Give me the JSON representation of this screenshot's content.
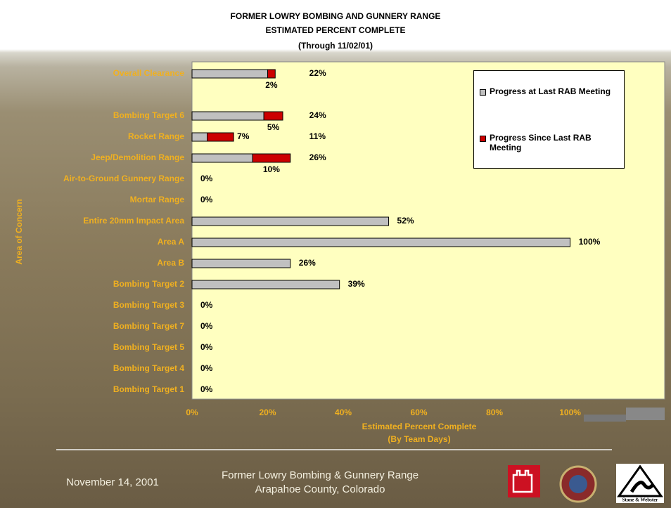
{
  "chart_data": {
    "type": "stacked-bar-horizontal",
    "title": "FORMER LOWRY BOMBING AND GUNNERY RANGE",
    "subtitle": "ESTIMATED PERCENT COMPLETE",
    "note": "(Through 11/02/01)",
    "x_label": "Estimated Percent Complete",
    "x_sublabel": "(By Team Days)",
    "y_label": "Area of Concern",
    "categories": [
      "Overall Clearance",
      null,
      "Bombing Target 6",
      "Rocket Range",
      "Jeep/Demolition Range",
      "Air-to-Ground Gunnery Range",
      "Mortar Range",
      "Entire 20mm Impact Area",
      "Area A",
      "Area B",
      "Bombing Target 2",
      "Bombing Target 3",
      "Bombing Target 7",
      "Bombing Target 5",
      "Bombing Target 4",
      "Bombing Target 1"
    ],
    "series": [
      {
        "name": "Progress at Last RAB Meeting",
        "color": "#c0c0c0",
        "values": [
          20,
          null,
          19,
          4,
          16,
          0,
          0,
          52,
          100,
          26,
          39,
          0,
          0,
          0,
          0,
          0
        ]
      },
      {
        "name": "Progress Since Last RAB Meeting",
        "color": "#cc0000",
        "values": [
          2,
          null,
          5,
          7,
          10,
          null,
          null,
          null,
          null,
          null,
          null,
          null,
          null,
          null,
          null,
          null
        ],
        "value_labels": [
          "2%",
          null,
          "5%",
          "7%",
          "10%",
          null,
          null,
          null,
          null,
          null,
          null,
          null,
          null,
          null,
          null,
          null
        ]
      }
    ],
    "totals": [
      22,
      null,
      24,
      11,
      26,
      0,
      0,
      52,
      100,
      26,
      39,
      0,
      0,
      0,
      0,
      0
    ],
    "total_labels": [
      "22%",
      null,
      "24%",
      "11%",
      "26%",
      "0%",
      "0%",
      "52%",
      "100%",
      "26%",
      "39%",
      "0%",
      "0%",
      "0%",
      "0%",
      "0%"
    ],
    "xlim": [
      0,
      125
    ],
    "xticks": [
      {
        "value": 0,
        "label": "0%"
      },
      {
        "value": 20,
        "label": "20%"
      },
      {
        "value": 40,
        "label": "40%"
      },
      {
        "value": 60,
        "label": "60%"
      },
      {
        "value": 80,
        "label": "80%"
      },
      {
        "value": 100,
        "label": "100%"
      }
    ],
    "plot_background": "#ffffc0",
    "label_color": "#f0b020"
  },
  "footer": {
    "date": "November 14, 2001",
    "line1": "Former Lowry Bombing & Gunnery Range",
    "line2": "Arapahoe County, Colorado",
    "logo_text": "Stone & Webster"
  }
}
